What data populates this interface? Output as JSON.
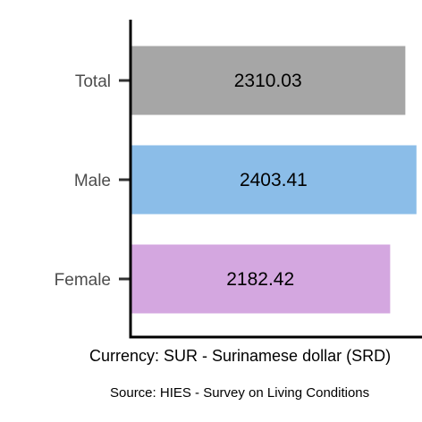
{
  "chart_data": {
    "type": "bar",
    "orientation": "horizontal",
    "categories": [
      "Total",
      "Male",
      "Female"
    ],
    "values": [
      2310.03,
      2403.41,
      2182.42
    ],
    "value_labels": [
      "2310.03",
      "2403.41",
      "2182.42"
    ],
    "colors": [
      "#a6a6a6",
      "#8bbde8",
      "#d4a7e0"
    ],
    "xlabel": "Currency: SUR - Surinamese dollar (SRD)",
    "ylabel": "",
    "title": "",
    "xlim": [
      0,
      2450
    ],
    "grid": false,
    "legend": "none"
  },
  "footer": {
    "source": "Source:  HIES - Survey on Living Conditions"
  }
}
